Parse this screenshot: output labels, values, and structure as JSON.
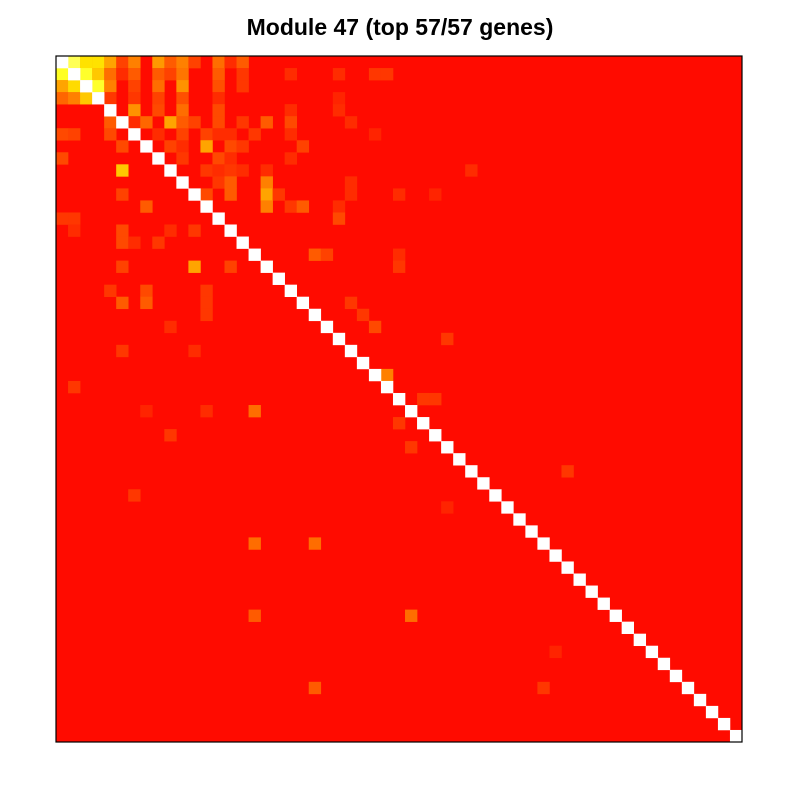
{
  "chart_data": {
    "type": "heatmap",
    "title": "Module 47 (top 57/57 genes)",
    "n_genes": 57,
    "xlabel": "",
    "ylabel": "",
    "grid": false,
    "legend": "none",
    "value_scale": "0 = red (#ff0000), 1 = pale yellow/white; diagonal cells shown white",
    "colors": {
      "low": "#ff0000",
      "high": "#ffff80",
      "diagonal": "#ffffff",
      "frame": "#000000"
    },
    "background_value": 0.03,
    "cells": [
      [
        0,
        1,
        0.9
      ],
      [
        0,
        2,
        0.62
      ],
      [
        0,
        3,
        0.62
      ],
      [
        0,
        4,
        0.45
      ],
      [
        0,
        5,
        0.18
      ],
      [
        0,
        6,
        0.35
      ],
      [
        0,
        8,
        0.42
      ],
      [
        0,
        9,
        0.25
      ],
      [
        0,
        10,
        0.35
      ],
      [
        0,
        11,
        0.18
      ],
      [
        0,
        13,
        0.3
      ],
      [
        0,
        14,
        0.12
      ],
      [
        0,
        15,
        0.25
      ],
      [
        1,
        0,
        0.78
      ],
      [
        1,
        2,
        0.8
      ],
      [
        1,
        3,
        0.55
      ],
      [
        1,
        4,
        0.3
      ],
      [
        1,
        5,
        0.12
      ],
      [
        1,
        6,
        0.25
      ],
      [
        1,
        8,
        0.25
      ],
      [
        1,
        9,
        0.18
      ],
      [
        1,
        10,
        0.32
      ],
      [
        1,
        13,
        0.25
      ],
      [
        1,
        15,
        0.15
      ],
      [
        1,
        19,
        0.12
      ],
      [
        1,
        23,
        0.12
      ],
      [
        1,
        26,
        0.15
      ],
      [
        1,
        27,
        0.15
      ],
      [
        2,
        0,
        0.45
      ],
      [
        2,
        1,
        0.6
      ],
      [
        2,
        3,
        0.8
      ],
      [
        2,
        4,
        0.35
      ],
      [
        2,
        6,
        0.18
      ],
      [
        2,
        8,
        0.3
      ],
      [
        2,
        10,
        0.4
      ],
      [
        2,
        13,
        0.22
      ],
      [
        2,
        15,
        0.15
      ],
      [
        3,
        0,
        0.28
      ],
      [
        3,
        1,
        0.35
      ],
      [
        3,
        2,
        0.55
      ],
      [
        3,
        4,
        0.15
      ],
      [
        3,
        6,
        0.15
      ],
      [
        3,
        8,
        0.18
      ],
      [
        3,
        10,
        0.22
      ],
      [
        3,
        13,
        0.12
      ],
      [
        3,
        23,
        0.1
      ],
      [
        4,
        6,
        0.4
      ],
      [
        4,
        8,
        0.2
      ],
      [
        4,
        10,
        0.3
      ],
      [
        4,
        13,
        0.2
      ],
      [
        4,
        19,
        0.12
      ],
      [
        4,
        23,
        0.12
      ],
      [
        5,
        4,
        0.25
      ],
      [
        5,
        6,
        0.12
      ],
      [
        5,
        7,
        0.28
      ],
      [
        5,
        9,
        0.45
      ],
      [
        5,
        10,
        0.25
      ],
      [
        5,
        11,
        0.18
      ],
      [
        5,
        13,
        0.2
      ],
      [
        5,
        15,
        0.15
      ],
      [
        5,
        17,
        0.25
      ],
      [
        5,
        19,
        0.2
      ],
      [
        5,
        24,
        0.12
      ],
      [
        6,
        0,
        0.2
      ],
      [
        6,
        1,
        0.18
      ],
      [
        6,
        4,
        0.2
      ],
      [
        6,
        8,
        0.12
      ],
      [
        6,
        10,
        0.18
      ],
      [
        6,
        12,
        0.18
      ],
      [
        6,
        13,
        0.12
      ],
      [
        6,
        14,
        0.12
      ],
      [
        6,
        16,
        0.15
      ],
      [
        6,
        19,
        0.12
      ],
      [
        6,
        26,
        0.1
      ],
      [
        7,
        5,
        0.2
      ],
      [
        7,
        9,
        0.18
      ],
      [
        7,
        10,
        0.12
      ],
      [
        7,
        12,
        0.45
      ],
      [
        7,
        14,
        0.2
      ],
      [
        7,
        15,
        0.15
      ],
      [
        7,
        20,
        0.18
      ],
      [
        8,
        0,
        0.2
      ],
      [
        8,
        10,
        0.15
      ],
      [
        8,
        13,
        0.2
      ],
      [
        8,
        14,
        0.12
      ],
      [
        8,
        19,
        0.12
      ],
      [
        9,
        5,
        0.55
      ],
      [
        9,
        12,
        0.15
      ],
      [
        9,
        13,
        0.12
      ],
      [
        9,
        14,
        0.15
      ],
      [
        9,
        15,
        0.12
      ],
      [
        9,
        17,
        0.12
      ],
      [
        9,
        34,
        0.12
      ],
      [
        10,
        13,
        0.15
      ],
      [
        10,
        14,
        0.25
      ],
      [
        10,
        17,
        0.35
      ],
      [
        10,
        24,
        0.12
      ],
      [
        11,
        5,
        0.18
      ],
      [
        11,
        12,
        0.2
      ],
      [
        11,
        14,
        0.25
      ],
      [
        11,
        17,
        0.45
      ],
      [
        11,
        18,
        0.15
      ],
      [
        11,
        24,
        0.12
      ],
      [
        11,
        28,
        0.12
      ],
      [
        11,
        31,
        0.1
      ],
      [
        12,
        7,
        0.25
      ],
      [
        12,
        17,
        0.35
      ],
      [
        12,
        19,
        0.15
      ],
      [
        12,
        20,
        0.25
      ],
      [
        12,
        23,
        0.12
      ],
      [
        13,
        0,
        0.15
      ],
      [
        13,
        1,
        0.15
      ],
      [
        13,
        23,
        0.2
      ],
      [
        14,
        1,
        0.12
      ],
      [
        14,
        5,
        0.2
      ],
      [
        14,
        9,
        0.12
      ],
      [
        14,
        11,
        0.15
      ],
      [
        15,
        5,
        0.2
      ],
      [
        15,
        6,
        0.12
      ],
      [
        15,
        8,
        0.15
      ],
      [
        16,
        21,
        0.25
      ],
      [
        16,
        22,
        0.18
      ],
      [
        16,
        28,
        0.12
      ],
      [
        17,
        5,
        0.18
      ],
      [
        17,
        11,
        0.45
      ],
      [
        17,
        14,
        0.18
      ],
      [
        17,
        28,
        0.15
      ],
      [
        19,
        4,
        0.15
      ],
      [
        19,
        7,
        0.2
      ],
      [
        19,
        12,
        0.15
      ],
      [
        20,
        5,
        0.25
      ],
      [
        20,
        7,
        0.25
      ],
      [
        20,
        12,
        0.15
      ],
      [
        20,
        24,
        0.15
      ],
      [
        21,
        12,
        0.15
      ],
      [
        21,
        25,
        0.15
      ],
      [
        22,
        9,
        0.12
      ],
      [
        22,
        26,
        0.2
      ],
      [
        23,
        32,
        0.15
      ],
      [
        24,
        5,
        0.15
      ],
      [
        24,
        11,
        0.12
      ],
      [
        26,
        27,
        0.35
      ],
      [
        27,
        1,
        0.15
      ],
      [
        28,
        30,
        0.15
      ],
      [
        28,
        31,
        0.15
      ],
      [
        29,
        7,
        0.1
      ],
      [
        29,
        12,
        0.12
      ],
      [
        29,
        16,
        0.3
      ],
      [
        30,
        28,
        0.15
      ],
      [
        31,
        9,
        0.15
      ],
      [
        32,
        29,
        0.15
      ],
      [
        34,
        42,
        0.15
      ],
      [
        36,
        6,
        0.15
      ],
      [
        37,
        32,
        0.1
      ],
      [
        40,
        16,
        0.3
      ],
      [
        40,
        21,
        0.3
      ],
      [
        46,
        16,
        0.25
      ],
      [
        46,
        29,
        0.3
      ],
      [
        49,
        41,
        0.1
      ],
      [
        52,
        21,
        0.25
      ],
      [
        52,
        40,
        0.15
      ]
    ]
  }
}
